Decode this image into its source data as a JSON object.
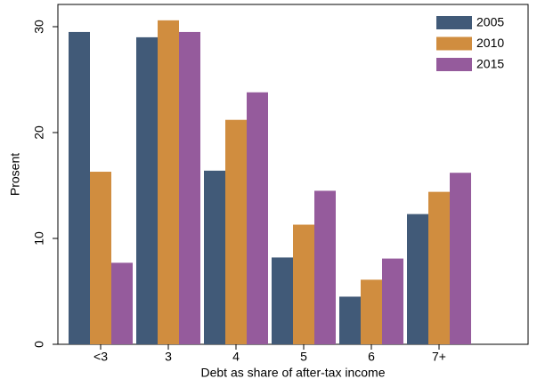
{
  "chart_data": {
    "type": "bar",
    "x_label": "Debt as share of after-tax income",
    "y_label": "Prosent",
    "categories": [
      "<3",
      "3",
      "4",
      "5",
      "6",
      "7+"
    ],
    "series": [
      {
        "name": "2005",
        "color": "#415a78",
        "values": [
          29.5,
          29.0,
          16.4,
          8.2,
          4.5,
          12.3
        ]
      },
      {
        "name": "2010",
        "color": "#d08d3f",
        "values": [
          16.3,
          30.6,
          21.2,
          11.3,
          6.1,
          14.4
        ]
      },
      {
        "name": "2015",
        "color": "#955b9c",
        "values": [
          7.7,
          29.5,
          23.8,
          14.5,
          8.1,
          16.2
        ]
      }
    ],
    "ylim": [
      0,
      32.1
    ],
    "yticks": [
      0,
      10,
      20,
      30
    ],
    "grid": false,
    "legend": "top-right"
  }
}
